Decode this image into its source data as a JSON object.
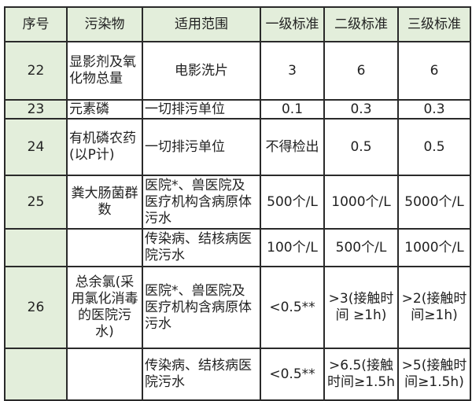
{
  "header": [
    "序号",
    "污染物",
    "适用范围",
    "一级标准",
    "二级标准",
    "三级标准"
  ],
  "rows": [
    {
      "no": "22",
      "pollutant": "显影剂及氧化物总量",
      "scope": "电影洗片",
      "g1": "3",
      "g2": "6",
      "g3": "6"
    },
    {
      "no": "23",
      "pollutant": "元素磷",
      "scope": "一切排污单位",
      "g1": "0.1",
      "g2": "0.3",
      "g3": "0.3"
    },
    {
      "no": "24",
      "pollutant": "有机磷农药(以P计)",
      "scope": "一切排污单位",
      "g1": "不得检出",
      "g2": "0.5",
      "g3": "0.5"
    },
    {
      "no": "25",
      "pollutant": "粪大肠菌群数",
      "scope": "医院*、兽医院及医疗机构含病原体污水",
      "g1": "500个/L",
      "g2": "1000个/L",
      "g3": "5000个/L"
    },
    {
      "no": "",
      "pollutant": "",
      "scope": "传染病、结核病医院污水",
      "g1": "100个/L",
      "g2": "500个/L",
      "g3": "1000个/L"
    },
    {
      "no": "26",
      "pollutant": "总余氯(采用氯化消毒的医院污水)",
      "scope": "医院*、兽医院及医疗机构含病原体污水",
      "g1": "<0.5**",
      "g2": ">3(接触时间 ≥1h)",
      "g3": ">2(接触时间≥1h)"
    },
    {
      "no": "",
      "pollutant": "",
      "scope": "传染病、结核病医院污水",
      "g1": "<0.5**",
      "g2": ">6.5(接触时间≥1.5h",
      "g3": ">5(接触时间≥1.5h)"
    }
  ],
  "colors": {
    "header_bg": "#e3eedb",
    "border": "#2a2a2a"
  }
}
